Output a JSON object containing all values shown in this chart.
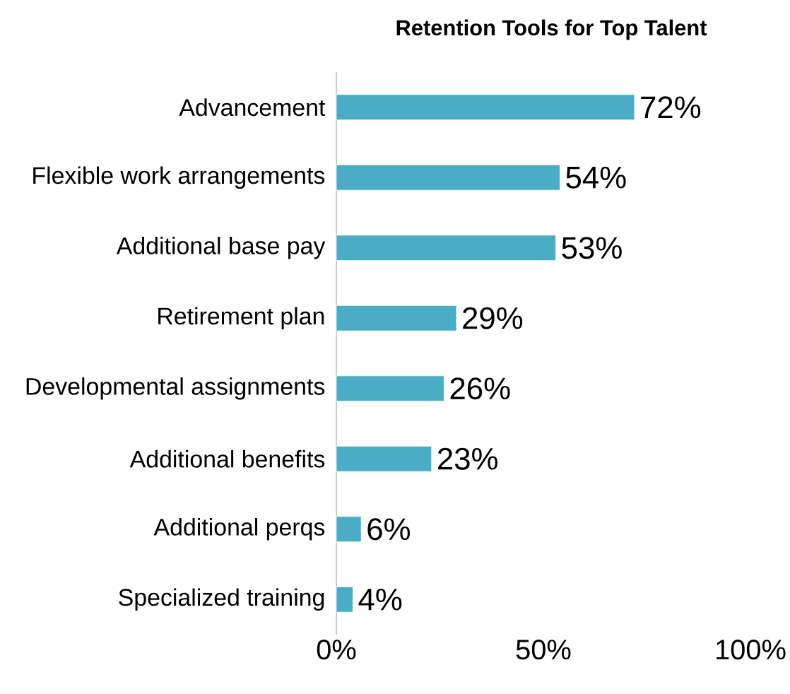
{
  "chart_data": {
    "type": "bar",
    "orientation": "horizontal",
    "title": "Retention Tools for Top Talent",
    "categories": [
      "Advancement",
      "Flexible work arrangements",
      "Additional base pay",
      "Retirement plan",
      "Developmental assignments",
      "Additional benefits",
      "Additional perqs",
      "Specialized training"
    ],
    "values": [
      72,
      54,
      53,
      29,
      26,
      23,
      6,
      4
    ],
    "value_labels": [
      "72%",
      "54%",
      "53%",
      "29%",
      "26%",
      "23%",
      "6%",
      "4%"
    ],
    "color": "#4bacc6",
    "xlim": [
      0,
      100
    ],
    "xticks": [
      {
        "value": 0,
        "label": "0%"
      },
      {
        "value": 50,
        "label": "50%"
      },
      {
        "value": 100,
        "label": "100%"
      }
    ],
    "grid": false
  }
}
